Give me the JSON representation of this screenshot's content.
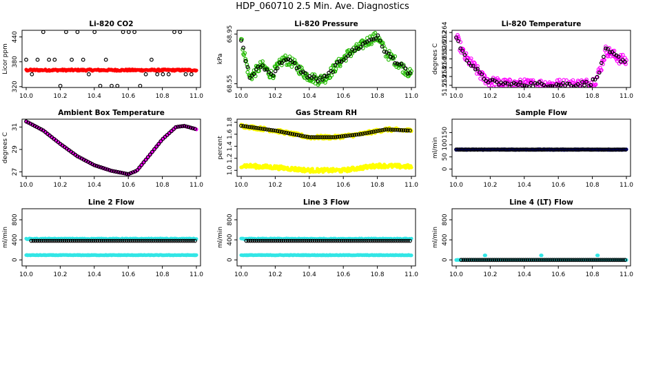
{
  "title": "HDP_060710  2.5 Min. Ave. Diagnostics",
  "x_range": [
    10.0,
    11.0
  ],
  "chart_data": [
    {
      "id": "co2",
      "type": "scatter",
      "title": "Li-820 CO2",
      "ylabel": "Licor ppm",
      "ylim": [
        318,
        456
      ],
      "yticks": [
        320,
        380,
        440
      ],
      "ytick_labels": [
        "320",
        "380",
        "440"
      ],
      "xticks": [
        10.0,
        10.2,
        10.4,
        10.6,
        10.8,
        11.0
      ],
      "xtick_labels": [
        "10.0",
        "10.2",
        "10.4",
        "10.6",
        "10.8",
        "11.0"
      ],
      "series": [
        {
          "name": "black",
          "color": "#000000",
          "marker": "open",
          "pattern": "co2_black"
        },
        {
          "name": "red",
          "color": "#ff0000",
          "marker": "filled",
          "pattern": "flat",
          "level": 360,
          "jitter": 2
        }
      ]
    },
    {
      "id": "pressure",
      "type": "scatter",
      "title": "Li-820 Pressure",
      "ylabel": "kPa",
      "ylim": [
        68.52,
        68.98
      ],
      "yticks": [
        68.55,
        68.95
      ],
      "ytick_labels": [
        "68.55",
        "68.95"
      ],
      "xticks": [
        10.0,
        10.2,
        10.4,
        10.6,
        10.8,
        11.0
      ],
      "xtick_labels": [
        "10.0",
        "10.2",
        "10.4",
        "10.6",
        "10.8",
        "11.0"
      ],
      "series": [
        {
          "name": "green",
          "color": "#22bb00",
          "marker": "open",
          "pattern": "pressure",
          "jitter": 0.04
        },
        {
          "name": "black",
          "color": "#000000",
          "marker": "open",
          "pattern": "pressure",
          "jitter": 0.02,
          "every": 3
        }
      ]
    },
    {
      "id": "li820temp",
      "type": "scatter",
      "title": "Li-820 Temperature",
      "ylabel": "degrees C",
      "ylim": [
        51.2515,
        51.2645
      ],
      "yticks": [
        51.252,
        51.254,
        51.256,
        51.258,
        51.26,
        51.262,
        51.264
      ],
      "ytick_labels": [
        "51.252",
        "51.254",
        "51.256",
        "51.258",
        "51.26",
        "51.262",
        "51.264"
      ],
      "xticks": [
        10.0,
        10.2,
        10.4,
        10.6,
        10.8,
        11.0
      ],
      "xtick_labels": [
        "10.0",
        "10.2",
        "10.4",
        "10.6",
        "10.8",
        "11.0"
      ],
      "series": [
        {
          "name": "magenta",
          "color": "#ff00ff",
          "marker": "open",
          "pattern": "ltemp",
          "jitter": 0.0012
        },
        {
          "name": "black",
          "color": "#000000",
          "marker": "open",
          "pattern": "ltemp",
          "jitter": 0.0006,
          "every": 3
        }
      ]
    },
    {
      "id": "boxtemp",
      "type": "scatter",
      "title": "Ambient Box Temperature",
      "ylabel": "degrees C",
      "ylim": [
        26.6,
        31.7
      ],
      "yticks": [
        27,
        29,
        31
      ],
      "ytick_labels": [
        "27",
        "29",
        "31"
      ],
      "xticks": [
        10.0,
        10.2,
        10.4,
        10.6,
        10.8,
        11.0
      ],
      "xtick_labels": [
        "10.0",
        "10.2",
        "10.4",
        "10.6",
        "10.8",
        "11.0"
      ],
      "series": [
        {
          "name": "magenta",
          "color": "#ff00ff",
          "marker": "filled",
          "pattern": "boxtemp",
          "jitter": 0.02
        },
        {
          "name": "black",
          "color": "#000000",
          "marker": "open",
          "pattern": "boxtemp",
          "jitter": 0.0,
          "every": 3
        }
      ]
    },
    {
      "id": "rh",
      "type": "scatter",
      "title": "Gas Stream RH",
      "ylabel": "percent",
      "ylim": [
        0.9,
        1.85
      ],
      "yticks": [
        1.0,
        1.2,
        1.4,
        1.6,
        1.8
      ],
      "ytick_labels": [
        "1.0",
        "1.2",
        "1.4",
        "1.6",
        "1.8"
      ],
      "xticks": [
        10.0,
        10.2,
        10.4,
        10.6,
        10.8,
        11.0
      ],
      "xtick_labels": [
        "10.0",
        "10.2",
        "10.4",
        "10.6",
        "10.8",
        "11.0"
      ],
      "series": [
        {
          "name": "yellow-high",
          "color": "#ffff00",
          "marker": "filled",
          "pattern": "rh_high",
          "jitter": 0.03
        },
        {
          "name": "yellow-low",
          "color": "#ffff00",
          "marker": "filled",
          "pattern": "rh_low",
          "jitter": 0.03
        },
        {
          "name": "black",
          "color": "#000000",
          "marker": "open",
          "pattern": "rh_high",
          "jitter": 0.0,
          "every": 3
        }
      ]
    },
    {
      "id": "sampleflow",
      "type": "scatter",
      "title": "Sample Flow",
      "ylabel": "ml/min",
      "ylim": [
        -30,
        205
      ],
      "yticks": [
        0,
        50,
        100,
        150
      ],
      "ytick_labels": [
        "0",
        "50",
        "100",
        "150"
      ],
      "xticks": [
        10.0,
        10.2,
        10.4,
        10.6,
        10.8,
        11.0
      ],
      "xtick_labels": [
        "10.0",
        "10.2",
        "10.4",
        "10.6",
        "10.8",
        "11.0"
      ],
      "series": [
        {
          "name": "blue",
          "color": "#0000cc",
          "marker": "filled",
          "pattern": "flat",
          "level": 80,
          "jitter": 1.5
        },
        {
          "name": "black",
          "color": "#000000",
          "marker": "open",
          "pattern": "flat",
          "level": 80,
          "jitter": 0.5,
          "every": 2
        }
      ]
    },
    {
      "id": "line2",
      "type": "scatter",
      "title": "Line 2 Flow",
      "ylabel": "ml/min",
      "ylim": [
        -120,
        1020
      ],
      "yticks": [
        0,
        400,
        800
      ],
      "ytick_labels": [
        "0",
        "400",
        "800"
      ],
      "xticks": [
        10.0,
        10.2,
        10.4,
        10.6,
        10.8,
        11.0
      ],
      "xtick_labels": [
        "10.0",
        "10.2",
        "10.4",
        "10.6",
        "10.8",
        "11.0"
      ],
      "series": [
        {
          "name": "cyan-high",
          "color": "#33e6e6",
          "marker": "filled",
          "pattern": "flat",
          "level": 420,
          "jitter": 8
        },
        {
          "name": "cyan-low",
          "color": "#33e6e6",
          "marker": "filled",
          "pattern": "flat",
          "level": 95,
          "jitter": 5
        },
        {
          "name": "black",
          "color": "#000000",
          "marker": "open",
          "pattern": "flat",
          "level": 380,
          "jitter": 0,
          "every": 3,
          "start": 0.03
        }
      ]
    },
    {
      "id": "line3",
      "type": "scatter",
      "title": "Line 3 Flow",
      "ylabel": "ml/min",
      "ylim": [
        -120,
        1020
      ],
      "yticks": [
        0,
        400,
        800
      ],
      "ytick_labels": [
        "0",
        "400",
        "800"
      ],
      "xticks": [
        10.0,
        10.2,
        10.4,
        10.6,
        10.8,
        11.0
      ],
      "xtick_labels": [
        "10.0",
        "10.2",
        "10.4",
        "10.6",
        "10.8",
        "11.0"
      ],
      "series": [
        {
          "name": "cyan-high",
          "color": "#33e6e6",
          "marker": "filled",
          "pattern": "flat",
          "level": 420,
          "jitter": 8
        },
        {
          "name": "cyan-low",
          "color": "#33e6e6",
          "marker": "filled",
          "pattern": "flat",
          "level": 95,
          "jitter": 5
        },
        {
          "name": "black",
          "color": "#000000",
          "marker": "open",
          "pattern": "flat",
          "level": 380,
          "jitter": 0,
          "every": 3,
          "start": 0.03
        }
      ]
    },
    {
      "id": "line4",
      "type": "scatter",
      "title": "Line 4 (LT) Flow",
      "ylabel": "ml/min",
      "ylim": [
        -120,
        1020
      ],
      "yticks": [
        0,
        400,
        800
      ],
      "ytick_labels": [
        "0",
        "400",
        "800"
      ],
      "xticks": [
        10.0,
        10.2,
        10.4,
        10.6,
        10.8,
        11.0
      ],
      "xtick_labels": [
        "10.0",
        "10.2",
        "10.4",
        "10.6",
        "10.8",
        "11.0"
      ],
      "series": [
        {
          "name": "cyan",
          "color": "#33e6e6",
          "marker": "filled",
          "pattern": "line4",
          "level": 0,
          "jitter": 3
        },
        {
          "name": "black",
          "color": "#000000",
          "marker": "open",
          "pattern": "flat",
          "level": 0,
          "jitter": 0,
          "every": 3,
          "start": 0.03
        }
      ]
    }
  ]
}
